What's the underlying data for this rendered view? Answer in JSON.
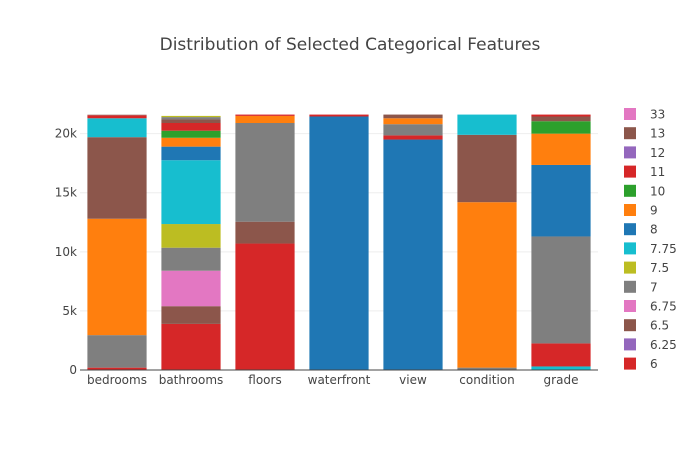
{
  "chart_data": {
    "type": "bar",
    "stacked": true,
    "title": "Distribution of Selected Categorical Features",
    "xlabel": "",
    "ylabel": "",
    "categories": [
      "bedrooms",
      "bathrooms",
      "floors",
      "waterfront",
      "view",
      "condition",
      "grade"
    ],
    "ylim": [
      0,
      22000
    ],
    "yticks": [
      0,
      5000,
      10000,
      15000,
      20000
    ],
    "ytick_labels": [
      "0",
      "5k",
      "10k",
      "15k",
      "20k"
    ],
    "grid": true,
    "legend_position": "right",
    "legend_labels": [
      "33",
      "13",
      "12",
      "11",
      "10",
      "9",
      "8",
      "7.75",
      "7.5",
      "7",
      "6.75",
      "6.5",
      "6.25",
      "6"
    ],
    "colors": {
      "red": "#d62728",
      "purple": "#9467bd",
      "brown": "#8c564b",
      "pink": "#e377c2",
      "gray": "#7f7f7f",
      "olive": "#bcbd22",
      "cyan": "#17becf",
      "blue": "#1f77b4",
      "orange": "#ff7f0e",
      "green": "#2ca02c"
    },
    "segments": {
      "bedrooms": [
        {
          "color": "red",
          "value": 200
        },
        {
          "color": "gray",
          "value": 2750
        },
        {
          "color": "orange",
          "value": 9850
        },
        {
          "color": "brown",
          "value": 6900
        },
        {
          "color": "cyan",
          "value": 1600
        },
        {
          "color": "red",
          "value": 250
        },
        {
          "color": "brown",
          "value": 50
        }
      ],
      "bathrooms": [
        {
          "color": "red",
          "value": 3900
        },
        {
          "color": "brown",
          "value": 1500
        },
        {
          "color": "pink",
          "value": 3000
        },
        {
          "color": "gray",
          "value": 1950
        },
        {
          "color": "olive",
          "value": 2000
        },
        {
          "color": "cyan",
          "value": 5400
        },
        {
          "color": "blue",
          "value": 1150
        },
        {
          "color": "orange",
          "value": 750
        },
        {
          "color": "green",
          "value": 600
        },
        {
          "color": "red",
          "value": 650
        },
        {
          "color": "brown",
          "value": 300
        },
        {
          "color": "gray",
          "value": 200
        },
        {
          "color": "olive",
          "value": 100
        }
      ],
      "floors": [
        {
          "color": "red",
          "value": 10700
        },
        {
          "color": "brown",
          "value": 1850
        },
        {
          "color": "gray",
          "value": 8350
        },
        {
          "color": "orange",
          "value": 600
        },
        {
          "color": "red",
          "value": 113
        }
      ],
      "waterfront": [
        {
          "color": "blue",
          "value": 21450
        },
        {
          "color": "red",
          "value": 163
        }
      ],
      "view": [
        {
          "color": "blue",
          "value": 19500
        },
        {
          "color": "red",
          "value": 350
        },
        {
          "color": "gray",
          "value": 950
        },
        {
          "color": "orange",
          "value": 500
        },
        {
          "color": "brown",
          "value": 313
        }
      ],
      "condition": [
        {
          "color": "gray",
          "value": 200
        },
        {
          "color": "orange",
          "value": 14000
        },
        {
          "color": "brown",
          "value": 5700
        },
        {
          "color": "cyan",
          "value": 1713
        }
      ],
      "grade": [
        {
          "color": "cyan",
          "value": 300
        },
        {
          "color": "red",
          "value": 1950
        },
        {
          "color": "gray",
          "value": 9050
        },
        {
          "color": "blue",
          "value": 6050
        },
        {
          "color": "orange",
          "value": 2650
        },
        {
          "color": "green",
          "value": 1050
        },
        {
          "color": "brown",
          "value": 400
        },
        {
          "color": "red",
          "value": 163
        }
      ]
    },
    "legend": [
      {
        "label": "33",
        "color": "pink"
      },
      {
        "label": "13",
        "color": "brown"
      },
      {
        "label": "12",
        "color": "purple"
      },
      {
        "label": "11",
        "color": "red"
      },
      {
        "label": "10",
        "color": "green"
      },
      {
        "label": "9",
        "color": "orange"
      },
      {
        "label": "8",
        "color": "blue"
      },
      {
        "label": "7.75",
        "color": "cyan"
      },
      {
        "label": "7.5",
        "color": "olive"
      },
      {
        "label": "7",
        "color": "gray"
      },
      {
        "label": "6.75",
        "color": "pink"
      },
      {
        "label": "6.5",
        "color": "brown"
      },
      {
        "label": "6.25",
        "color": "purple"
      },
      {
        "label": "6",
        "color": "red"
      }
    ]
  }
}
